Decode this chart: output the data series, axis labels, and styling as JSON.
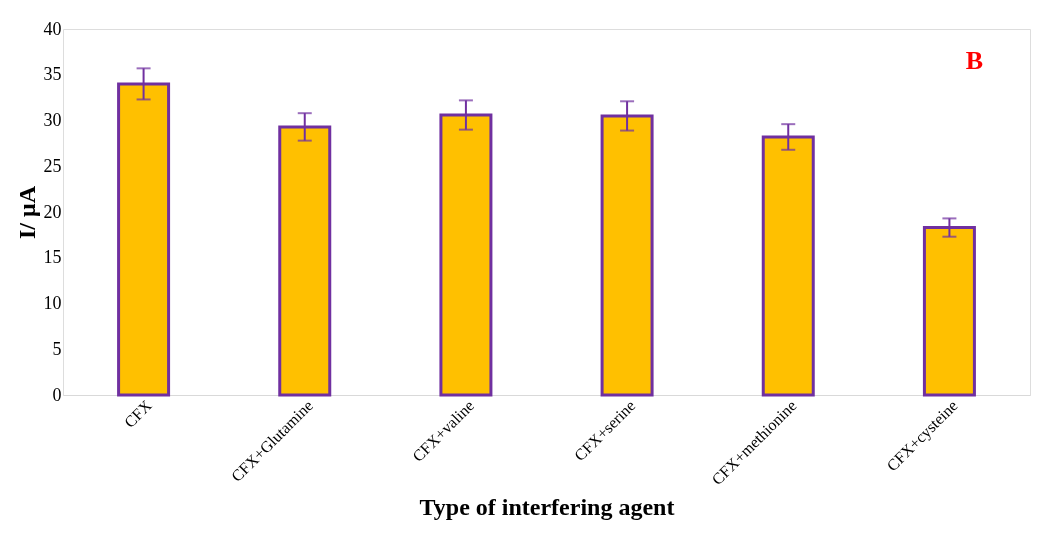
{
  "chart_data": {
    "type": "bar",
    "xlabel": "Type of interfering agent",
    "ylabel": "I/ μA",
    "categories": [
      "CFX",
      "CFX+Glutamine",
      "CFX+valine",
      "CFX+serine",
      "CFX+methionine",
      "CFX+cysteine"
    ],
    "series": [
      {
        "color": "#ffc000",
        "values": [
          34.0,
          29.3,
          30.6,
          30.5,
          28.2,
          18.3
        ],
        "errors": [
          1.7,
          1.5,
          1.6,
          1.6,
          1.4,
          1.0
        ]
      }
    ],
    "ylim": [
      0,
      40
    ],
    "yticks": [
      0,
      5,
      10,
      15,
      20,
      25,
      30,
      35,
      40
    ],
    "grid": false,
    "annotations": [
      "B"
    ]
  }
}
